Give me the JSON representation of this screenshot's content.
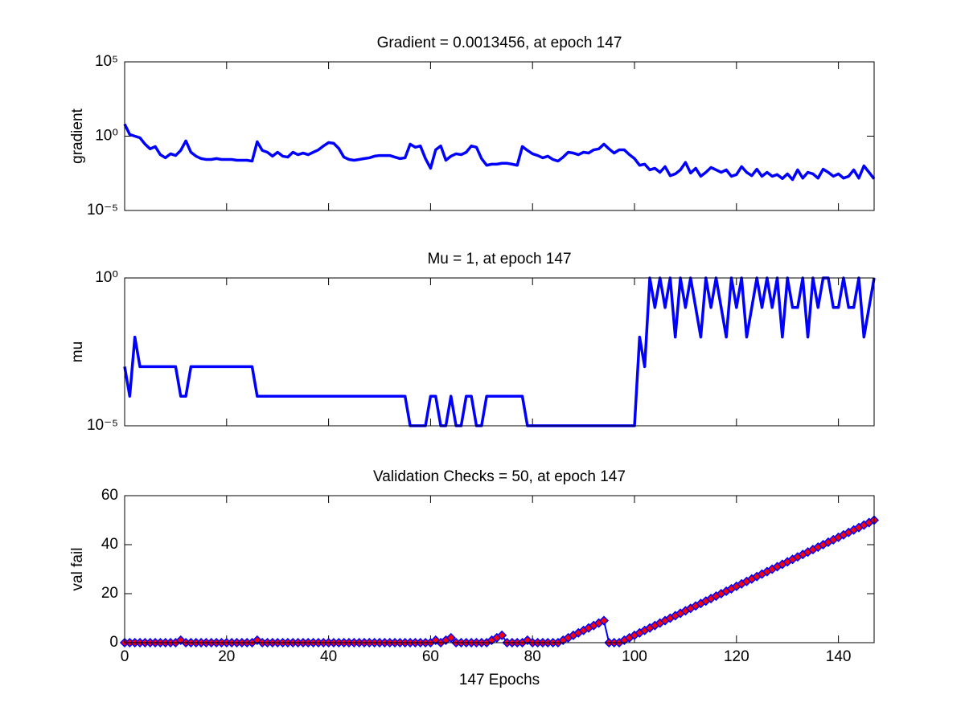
{
  "chart_data": [
    {
      "type": "line",
      "title": "Gradient = 0.0013456, at epoch 147",
      "ylabel": "gradient",
      "yscale": "log",
      "color": "#0000ff",
      "xlim": [
        0,
        147
      ],
      "xticks": [
        0,
        20,
        40,
        60,
        80,
        100,
        120,
        140
      ],
      "ylim": [
        1e-05,
        100000
      ],
      "yticks": [
        {
          "value": 1e-05,
          "label": "10⁻⁵"
        },
        {
          "value": 1,
          "label": "10⁰"
        },
        {
          "value": 100000,
          "label": "10⁵"
        }
      ],
      "x": [
        0,
        1,
        2,
        3,
        4,
        5,
        6,
        7,
        8,
        9,
        10,
        11,
        12,
        13,
        14,
        15,
        16,
        17,
        18,
        19,
        20,
        21,
        22,
        23,
        24,
        25,
        26,
        27,
        28,
        29,
        30,
        31,
        32,
        33,
        34,
        35,
        36,
        37,
        38,
        39,
        40,
        41,
        42,
        43,
        44,
        45,
        46,
        47,
        48,
        49,
        50,
        51,
        52,
        53,
        54,
        55,
        56,
        57,
        58,
        59,
        60,
        61,
        62,
        63,
        64,
        65,
        66,
        67,
        68,
        69,
        70,
        71,
        72,
        73,
        74,
        75,
        76,
        77,
        78,
        79,
        80,
        81,
        82,
        83,
        84,
        85,
        86,
        87,
        88,
        89,
        90,
        91,
        92,
        93,
        94,
        95,
        96,
        97,
        98,
        99,
        100,
        101,
        102,
        103,
        104,
        105,
        106,
        107,
        108,
        109,
        110,
        111,
        112,
        113,
        114,
        115,
        116,
        117,
        118,
        119,
        120,
        121,
        122,
        123,
        124,
        125,
        126,
        127,
        128,
        129,
        130,
        131,
        132,
        133,
        134,
        135,
        136,
        137,
        138,
        139,
        140,
        141,
        142,
        143,
        144,
        145,
        146,
        147
      ],
      "values": [
        6.5,
        1.3,
        1,
        0.78,
        0.29,
        0.14,
        0.2,
        0.057,
        0.035,
        0.065,
        0.05,
        0.11,
        0.48,
        0.083,
        0.045,
        0.031,
        0.027,
        0.027,
        0.031,
        0.027,
        0.027,
        0.027,
        0.024,
        0.024,
        0.024,
        0.021,
        0.42,
        0.11,
        0.083,
        0.045,
        0.083,
        0.045,
        0.039,
        0.083,
        0.057,
        0.073,
        0.057,
        0.083,
        0.12,
        0.22,
        0.37,
        0.33,
        0.15,
        0.039,
        0.027,
        0.024,
        0.027,
        0.031,
        0.035,
        0.045,
        0.05,
        0.05,
        0.05,
        0.039,
        0.031,
        0.035,
        0.29,
        0.18,
        0.22,
        0.031,
        0.0069,
        0.12,
        0.22,
        0.024,
        0.045,
        0.065,
        0.057,
        0.083,
        0.22,
        0.18,
        0.031,
        0.011,
        0.013,
        0.013,
        0.015,
        0.015,
        0.013,
        0.011,
        0.2,
        0.11,
        0.065,
        0.05,
        0.035,
        0.045,
        0.027,
        0.021,
        0.039,
        0.083,
        0.073,
        0.057,
        0.083,
        0.073,
        0.12,
        0.14,
        0.29,
        0.14,
        0.073,
        0.12,
        0.12,
        0.057,
        0.031,
        0.011,
        0.013,
        0.0054,
        0.0069,
        0.0037,
        0.0089,
        0.0022,
        0.0029,
        0.0054,
        0.017,
        0.0033,
        0.0069,
        0.002,
        0.0037,
        0.0078,
        0.0054,
        0.0037,
        0.0054,
        0.002,
        0.0026,
        0.0089,
        0.0037,
        0.0022,
        0.006,
        0.002,
        0.0037,
        0.002,
        0.0026,
        0.0014,
        0.0029,
        0.0012,
        0.0054,
        0.0015,
        0.0037,
        0.0029,
        0.0015,
        0.006,
        0.0037,
        0.002,
        0.0029,
        0.0015,
        0.002,
        0.0054,
        0.0015,
        0.01,
        0.0037,
        0.0013456
      ]
    },
    {
      "type": "line",
      "title": "Mu = 1, at epoch 147",
      "ylabel": "mu",
      "yscale": "log",
      "color": "#0000ff",
      "xlim": [
        0,
        147
      ],
      "xticks": [
        0,
        20,
        40,
        60,
        80,
        100,
        120,
        140
      ],
      "ylim": [
        1e-05,
        1
      ],
      "yticks": [
        {
          "value": 1e-05,
          "label": "10⁻⁵"
        },
        {
          "value": 1,
          "label": "10⁰"
        }
      ],
      "x": [
        0,
        1,
        2,
        3,
        4,
        5,
        6,
        7,
        8,
        9,
        10,
        11,
        12,
        13,
        14,
        15,
        16,
        17,
        18,
        19,
        20,
        21,
        22,
        23,
        24,
        25,
        26,
        27,
        28,
        29,
        30,
        31,
        32,
        33,
        34,
        35,
        36,
        37,
        38,
        39,
        40,
        41,
        42,
        43,
        44,
        45,
        46,
        47,
        48,
        49,
        50,
        51,
        52,
        53,
        54,
        55,
        56,
        57,
        58,
        59,
        60,
        61,
        62,
        63,
        64,
        65,
        66,
        67,
        68,
        69,
        70,
        71,
        72,
        73,
        74,
        75,
        76,
        77,
        78,
        79,
        80,
        81,
        82,
        83,
        84,
        85,
        86,
        87,
        88,
        89,
        90,
        91,
        92,
        93,
        94,
        95,
        96,
        97,
        98,
        99,
        100,
        101,
        102,
        103,
        104,
        105,
        106,
        107,
        108,
        109,
        110,
        111,
        112,
        113,
        114,
        115,
        116,
        117,
        118,
        119,
        120,
        121,
        122,
        123,
        124,
        125,
        126,
        127,
        128,
        129,
        130,
        131,
        132,
        133,
        134,
        135,
        136,
        137,
        138,
        139,
        140,
        141,
        142,
        143,
        144,
        145,
        146,
        147
      ],
      "values": [
        0.001,
        0.0001,
        0.01,
        0.001,
        0.001,
        0.001,
        0.001,
        0.001,
        0.001,
        0.001,
        0.001,
        0.0001,
        0.0001,
        0.001,
        0.001,
        0.001,
        0.001,
        0.001,
        0.001,
        0.001,
        0.001,
        0.001,
        0.001,
        0.001,
        0.001,
        0.001,
        0.0001,
        0.0001,
        0.0001,
        0.0001,
        0.0001,
        0.0001,
        0.0001,
        0.0001,
        0.0001,
        0.0001,
        0.0001,
        0.0001,
        0.0001,
        0.0001,
        0.0001,
        0.0001,
        0.0001,
        0.0001,
        0.0001,
        0.0001,
        0.0001,
        0.0001,
        0.0001,
        0.0001,
        0.0001,
        0.0001,
        0.0001,
        0.0001,
        0.0001,
        0.0001,
        1e-05,
        1e-05,
        1e-05,
        1e-05,
        0.0001,
        0.0001,
        1e-05,
        1e-05,
        0.0001,
        1e-05,
        1e-05,
        0.0001,
        0.0001,
        1e-05,
        1e-05,
        0.0001,
        0.0001,
        0.0001,
        0.0001,
        0.0001,
        0.0001,
        0.0001,
        0.0001,
        1e-05,
        1e-05,
        1e-05,
        1e-05,
        1e-05,
        1e-05,
        1e-05,
        1e-05,
        1e-05,
        1e-05,
        1e-05,
        1e-05,
        1e-05,
        1e-05,
        1e-05,
        1e-05,
        1e-05,
        1e-05,
        1e-05,
        1e-05,
        1e-05,
        1e-05,
        0.01,
        0.001,
        1,
        0.1,
        1,
        0.1,
        1,
        0.01,
        1,
        0.1,
        1,
        0.1,
        0.01,
        1,
        0.1,
        1,
        0.1,
        0.01,
        1,
        0.1,
        1,
        0.01,
        0.1,
        1,
        0.1,
        1,
        0.1,
        1,
        0.01,
        1,
        0.1,
        0.1,
        1,
        0.01,
        1,
        0.1,
        1,
        1,
        0.1,
        0.1,
        1,
        0.1,
        0.1,
        1,
        0.01,
        0.1,
        1
      ]
    },
    {
      "type": "line",
      "title": "Validation Checks = 50, at epoch 147",
      "ylabel": "val fail",
      "xlabel": "147 Epochs",
      "color": "#0000ff",
      "marker": "diamond",
      "marker_color": "#ff0000",
      "xlim": [
        0,
        147
      ],
      "xticks": [
        0,
        20,
        40,
        60,
        80,
        100,
        120,
        140
      ],
      "ylim": [
        0,
        60
      ],
      "yticks": [
        0,
        20,
        40,
        60
      ],
      "x": [
        0,
        1,
        2,
        3,
        4,
        5,
        6,
        7,
        8,
        9,
        10,
        11,
        12,
        13,
        14,
        15,
        16,
        17,
        18,
        19,
        20,
        21,
        22,
        23,
        24,
        25,
        26,
        27,
        28,
        29,
        30,
        31,
        32,
        33,
        34,
        35,
        36,
        37,
        38,
        39,
        40,
        41,
        42,
        43,
        44,
        45,
        46,
        47,
        48,
        49,
        50,
        51,
        52,
        53,
        54,
        55,
        56,
        57,
        58,
        59,
        60,
        61,
        62,
        63,
        64,
        65,
        66,
        67,
        68,
        69,
        70,
        71,
        72,
        73,
        74,
        75,
        76,
        77,
        78,
        79,
        80,
        81,
        82,
        83,
        84,
        85,
        86,
        87,
        88,
        89,
        90,
        91,
        92,
        93,
        94,
        95,
        96,
        97,
        98,
        99,
        100,
        101,
        102,
        103,
        104,
        105,
        106,
        107,
        108,
        109,
        110,
        111,
        112,
        113,
        114,
        115,
        116,
        117,
        118,
        119,
        120,
        121,
        122,
        123,
        124,
        125,
        126,
        127,
        128,
        129,
        130,
        131,
        132,
        133,
        134,
        135,
        136,
        137,
        138,
        139,
        140,
        141,
        142,
        143,
        144,
        145,
        146,
        147
      ],
      "values": [
        0,
        0,
        0,
        0,
        0,
        0,
        0,
        0,
        0,
        0,
        0,
        1,
        0,
        0,
        0,
        0,
        0,
        0,
        0,
        0,
        0,
        0,
        0,
        0,
        0,
        0,
        1,
        0,
        0,
        0,
        0,
        0,
        0,
        0,
        0,
        0,
        0,
        0,
        0,
        0,
        0,
        0,
        0,
        0,
        0,
        0,
        0,
        0,
        0,
        0,
        0,
        0,
        0,
        0,
        0,
        0,
        0,
        0,
        0,
        0,
        0,
        1,
        0,
        1,
        2,
        0,
        0,
        0,
        0,
        0,
        0,
        0,
        1,
        2,
        3,
        0,
        0,
        0,
        0,
        1,
        0,
        0,
        0,
        0,
        0,
        0,
        1,
        2,
        3,
        4,
        5,
        6,
        7,
        8,
        9,
        0,
        0,
        0,
        1,
        2,
        3,
        4,
        5,
        6,
        7,
        8,
        9,
        10,
        11,
        12,
        13,
        14,
        15,
        16,
        17,
        18,
        19,
        20,
        21,
        22,
        23,
        24,
        25,
        26,
        27,
        28,
        29,
        30,
        31,
        32,
        33,
        34,
        35,
        36,
        37,
        38,
        39,
        40,
        41,
        42,
        43,
        44,
        45,
        46,
        47,
        48,
        49,
        50
      ]
    }
  ]
}
